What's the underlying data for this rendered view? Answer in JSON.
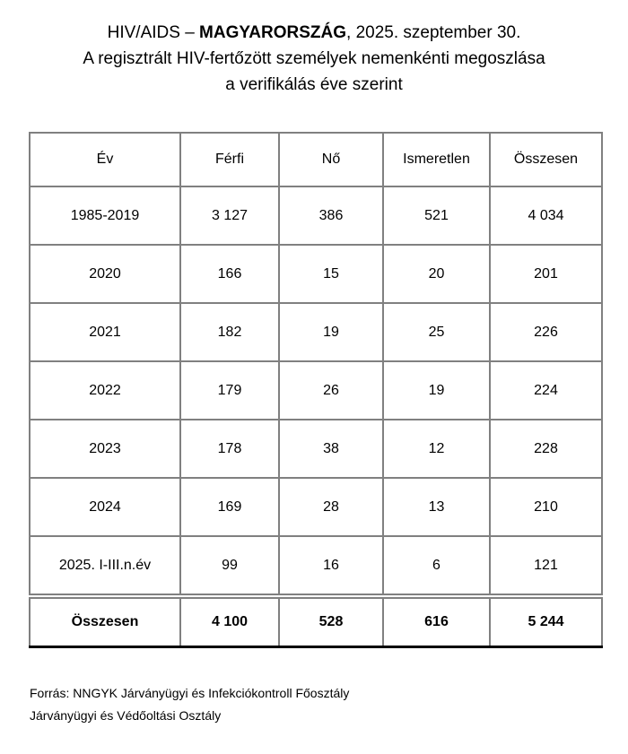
{
  "title": {
    "prefix": "HIV/AIDS – ",
    "country": "MAGYARORSZÁG",
    "date_suffix": ", 2025. szeptember 30.",
    "subtitle_line1": "A regisztrált HIV-fertőzött személyek nemenkénti megoszlása",
    "subtitle_line2": "a verifikálás éve szerint"
  },
  "table": {
    "headers": [
      "Év",
      "Férfi",
      "Nő",
      "Ismeretlen",
      "Összesen"
    ],
    "rows": [
      [
        "1985-2019",
        "3 127",
        "386",
        "521",
        "4 034"
      ],
      [
        "2020",
        "166",
        "15",
        "20",
        "201"
      ],
      [
        "2021",
        "182",
        "19",
        "25",
        "226"
      ],
      [
        "2022",
        "179",
        "26",
        "19",
        "224"
      ],
      [
        "2023",
        "178",
        "38",
        "12",
        "228"
      ],
      [
        "2024",
        "169",
        "28",
        "13",
        "210"
      ],
      [
        "2025. I-III.n.év",
        "99",
        "16",
        "6",
        "121"
      ]
    ],
    "total_row": [
      "Összesen",
      "4 100",
      "528",
      "616",
      "5 244"
    ]
  },
  "source": {
    "line1": "Forrás: NNGYK Járványügyi és Infekciókontroll Főosztály",
    "line2": "Járványügyi és Védőoltási Osztály"
  },
  "colors": {
    "background": "#ffffff",
    "text": "#000000",
    "table_border_gray": "#808080",
    "table_border_black": "#000000"
  },
  "chart_data": {
    "type": "table",
    "title": "A regisztrált HIV-fertőzött személyek nemenkénti megoszlása a verifikálás éve szerint",
    "columns": [
      "Év",
      "Férfi",
      "Nő",
      "Ismeretlen",
      "Összesen"
    ],
    "rows": [
      {
        "ev": "1985-2019",
        "ferfi": 3127,
        "no": 386,
        "ismeretlen": 521,
        "osszesen": 4034
      },
      {
        "ev": "2020",
        "ferfi": 166,
        "no": 15,
        "ismeretlen": 20,
        "osszesen": 201
      },
      {
        "ev": "2021",
        "ferfi": 182,
        "no": 19,
        "ismeretlen": 25,
        "osszesen": 226
      },
      {
        "ev": "2022",
        "ferfi": 179,
        "no": 26,
        "ismeretlen": 19,
        "osszesen": 224
      },
      {
        "ev": "2023",
        "ferfi": 178,
        "no": 38,
        "ismeretlen": 12,
        "osszesen": 228
      },
      {
        "ev": "2024",
        "ferfi": 169,
        "no": 28,
        "ismeretlen": 13,
        "osszesen": 210
      },
      {
        "ev": "2025. I-III.n.év",
        "ferfi": 99,
        "no": 16,
        "ismeretlen": 6,
        "osszesen": 121
      }
    ],
    "totals": {
      "ev": "Összesen",
      "ferfi": 4100,
      "no": 528,
      "ismeretlen": 616,
      "osszesen": 5244
    }
  }
}
